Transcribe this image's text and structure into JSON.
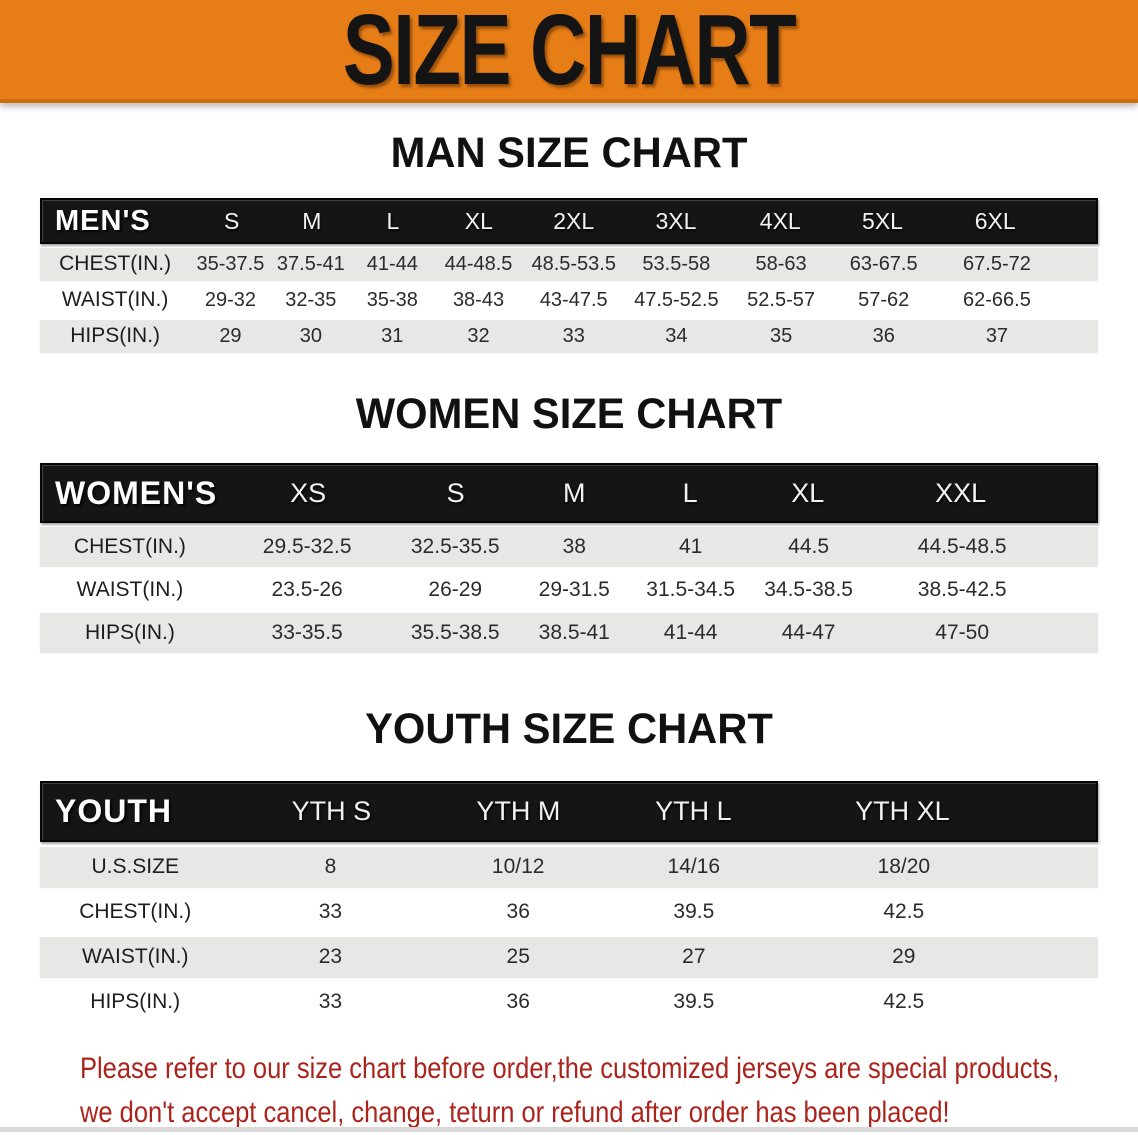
{
  "banner": {
    "title": "SIZE CHART",
    "bg_color": "#e67d16",
    "title_color": "#141414"
  },
  "tables": [
    {
      "title": "MAN SIZE CHART",
      "header_label": "MEN'S",
      "sizes": [
        "S",
        "M",
        "L",
        "XL",
        "2XL",
        "3XL",
        "4XL",
        "5XL",
        "6XL"
      ],
      "rows": [
        {
          "label": "CHEST(IN.)",
          "values": [
            "35-37.5",
            "37.5-41",
            "41-44",
            "44-48.5",
            "48.5-53.5",
            "53.5-58",
            "58-63",
            "63-67.5",
            "67.5-72"
          ]
        },
        {
          "label": "WAIST(IN.)",
          "values": [
            "29-32",
            "32-35",
            "35-38",
            "38-43",
            "43-47.5",
            "47.5-52.5",
            "52.5-57",
            "57-62",
            "62-66.5"
          ]
        },
        {
          "label": "HIPS(IN.)",
          "values": [
            "29",
            "30",
            "31",
            "32",
            "33",
            "34",
            "35",
            "36",
            "37"
          ]
        }
      ]
    },
    {
      "title": "WOMEN SIZE CHART",
      "header_label": "WOMEN'S",
      "sizes": [
        "XS",
        "S",
        "M",
        "L",
        "XL",
        "XXL"
      ],
      "rows": [
        {
          "label": "CHEST(IN.)",
          "values": [
            "29.5-32.5",
            "32.5-35.5",
            "38",
            "41",
            "44.5",
            "44.5-48.5"
          ]
        },
        {
          "label": "WAIST(IN.)",
          "values": [
            "23.5-26",
            "26-29",
            "29-31.5",
            "31.5-34.5",
            "34.5-38.5",
            "38.5-42.5"
          ]
        },
        {
          "label": "HIPS(IN.)",
          "values": [
            "33-35.5",
            "35.5-38.5",
            "38.5-41",
            "41-44",
            "44-47",
            "47-50"
          ]
        }
      ]
    },
    {
      "title": "YOUTH SIZE CHART",
      "header_label": "YOUTH",
      "sizes": [
        "YTH S",
        "YTH M",
        "YTH L",
        "YTH XL"
      ],
      "rows": [
        {
          "label": "U.S.SIZE",
          "values": [
            "8",
            "10/12",
            "14/16",
            "18/20"
          ]
        },
        {
          "label": "CHEST(IN.)",
          "values": [
            "33",
            "36",
            "39.5",
            "42.5"
          ]
        },
        {
          "label": "WAIST(IN.)",
          "values": [
            "23",
            "25",
            "27",
            "29"
          ]
        },
        {
          "label": "HIPS(IN.)",
          "values": [
            "33",
            "36",
            "39.5",
            "42.5"
          ]
        }
      ]
    }
  ],
  "disclaimer": {
    "line1": "Please refer to our size chart before order,the customized jerseys are special products,",
    "line2": "we don't accept cancel, change, teturn or refund after order has been placed!",
    "color": "#ab241c"
  }
}
